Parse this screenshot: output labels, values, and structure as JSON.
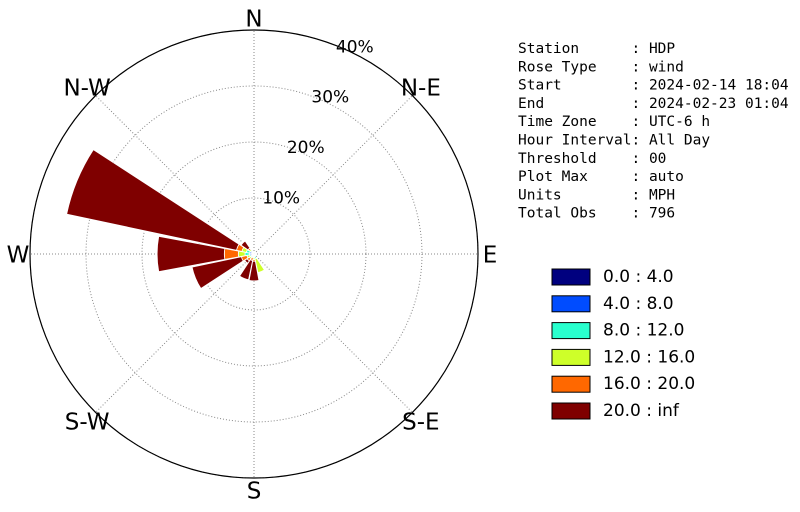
{
  "chart_data": {
    "type": "windrose",
    "direction_labels": [
      "N",
      "N-E",
      "E",
      "S-E",
      "S",
      "S-W",
      "W",
      "N-W"
    ],
    "x": [
      0,
      22.5,
      45,
      67.5,
      90,
      112.5,
      135,
      157.5,
      180,
      202.5,
      225,
      247.5,
      270,
      292.5,
      315,
      337.5
    ],
    "series": [
      {
        "name": "0.0 : 4.0",
        "color": "#00007f",
        "values": [
          0.2,
          0,
          0,
          0,
          0.1,
          0,
          0,
          0.1,
          0.2,
          0.1,
          0.2,
          0.2,
          0.3,
          0.3,
          0.2,
          0.1
        ]
      },
      {
        "name": "4.0 : 8.0",
        "color": "#004cff",
        "values": [
          0.2,
          0,
          0,
          0,
          0.1,
          0.1,
          0.1,
          0.3,
          0.3,
          0.2,
          0.3,
          0.3,
          0.5,
          0.5,
          0.3,
          0.2
        ]
      },
      {
        "name": "8.0 : 12.0",
        "color": "#29ffce",
        "values": [
          0,
          0,
          0,
          0,
          0,
          0,
          0.3,
          0.5,
          0.2,
          0.2,
          0.2,
          0.3,
          0.8,
          0.6,
          0.2,
          0
        ]
      },
      {
        "name": "12.0 : 16.0",
        "color": "#ceff29",
        "values": [
          0,
          0,
          0,
          0,
          0,
          0,
          0,
          2.5,
          0.3,
          0.2,
          0.3,
          0.5,
          1.2,
          0.8,
          0.3,
          0
        ]
      },
      {
        "name": "16.0 : 20.0",
        "color": "#ff6800",
        "values": [
          0,
          0,
          0,
          0,
          0,
          0,
          0,
          0,
          0.3,
          0.5,
          0.5,
          1.0,
          2.5,
          1.0,
          0.3,
          0
        ]
      },
      {
        "name": "20.0 : inf",
        "color": "#7f0000",
        "values": [
          0,
          0,
          0,
          0,
          0,
          0,
          0,
          0,
          3.5,
          3.5,
          0.5,
          9,
          12,
          31,
          1.5,
          0
        ]
      }
    ],
    "rlim": [
      0,
      40
    ],
    "rticks": [
      {
        "value": 10,
        "label": "10%"
      },
      {
        "value": 20,
        "label": "20%"
      },
      {
        "value": 30,
        "label": "30%"
      },
      {
        "value": 40,
        "label": "40%"
      }
    ],
    "grid": true,
    "info": [
      "Station      : HDP",
      "Rose Type    : wind",
      "Start        : 2024-02-14 18:04",
      "End          : 2024-02-23 01:04",
      "Time Zone    : UTC-6 h",
      "Hour Interval: All Day",
      "Threshold    : 00",
      "Plot Max     : auto",
      "Units        : MPH",
      "Total Obs    : 796"
    ]
  }
}
